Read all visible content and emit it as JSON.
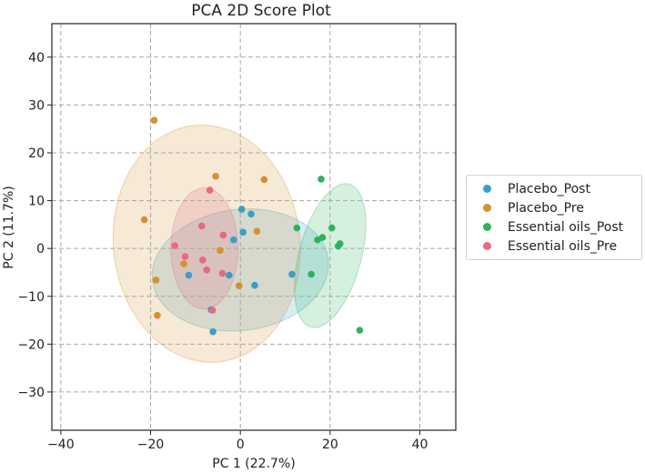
{
  "chart_data": {
    "type": "scatter",
    "title": "PCA 2D Score Plot",
    "xlabel": "PC 1 (22.7%)",
    "ylabel": "PC 2 (11.7%)",
    "xlim": [
      -42,
      48
    ],
    "ylim": [
      -38,
      47
    ],
    "xticks": [
      -40,
      -20,
      0,
      20,
      40
    ],
    "yticks": [
      -30,
      -20,
      -10,
      0,
      10,
      20,
      30,
      40
    ],
    "grid": true,
    "legend_position": "right",
    "series": [
      {
        "name": "Placebo_Post",
        "color": "#3a9fc6",
        "points": [
          [
            0.3,
            8.2
          ],
          [
            2.4,
            7.2
          ],
          [
            0.6,
            3.4
          ],
          [
            -1.5,
            1.8
          ],
          [
            11.5,
            -5.4
          ],
          [
            -2.5,
            -5.6
          ],
          [
            -11.5,
            -5.6
          ],
          [
            3.2,
            -7.7
          ],
          [
            -6.5,
            -12.8
          ],
          [
            -6.1,
            -17.4
          ]
        ],
        "ellipse": {
          "cx": 0,
          "cy": -4.5,
          "rx": 13.5,
          "ry": 18.5,
          "angle": 97
        }
      },
      {
        "name": "Placebo_Pre",
        "color": "#d4912f",
        "points": [
          [
            -19.2,
            26.8
          ],
          [
            -5.5,
            15.1
          ],
          [
            5.3,
            14.4
          ],
          [
            -21.4,
            6.0
          ],
          [
            3.7,
            3.6
          ],
          [
            -4.5,
            -0.4
          ],
          [
            -12.6,
            -3.2
          ],
          [
            -18.8,
            -6.6
          ],
          [
            -0.3,
            -7.8
          ],
          [
            -18.5,
            -14.0
          ]
        ],
        "ellipse": {
          "cx": -7.5,
          "cy": 1,
          "rx": 26.5,
          "ry": 19.5,
          "angle": 96
        }
      },
      {
        "name": "Essential oils_Post",
        "color": "#2eb25f",
        "points": [
          [
            18.0,
            14.5
          ],
          [
            12.6,
            4.3
          ],
          [
            20.4,
            4.3
          ],
          [
            17.2,
            1.8
          ],
          [
            18.3,
            2.3
          ],
          [
            21.8,
            0.5
          ],
          [
            22.2,
            1.0
          ],
          [
            15.8,
            -5.4
          ],
          [
            26.6,
            -17.1
          ]
        ],
        "ellipse": {
          "cx": 20,
          "cy": -1.5,
          "rx": 16.5,
          "ry": 6.5,
          "angle": 75
        }
      },
      {
        "name": "Essential oils_Pre",
        "color": "#e56b80",
        "points": [
          [
            -6.8,
            12.2
          ],
          [
            -8.6,
            4.7
          ],
          [
            -14.6,
            0.6
          ],
          [
            -3.8,
            2.8
          ],
          [
            -12.3,
            -1.7
          ],
          [
            -8.4,
            -2.4
          ],
          [
            -7.5,
            -4.5
          ],
          [
            -4.0,
            -5.2
          ],
          [
            -6.2,
            -12.9
          ]
        ],
        "ellipse": {
          "cx": -8,
          "cy": 0,
          "rx": 13.5,
          "ry": 7,
          "angle": 90
        }
      }
    ]
  }
}
